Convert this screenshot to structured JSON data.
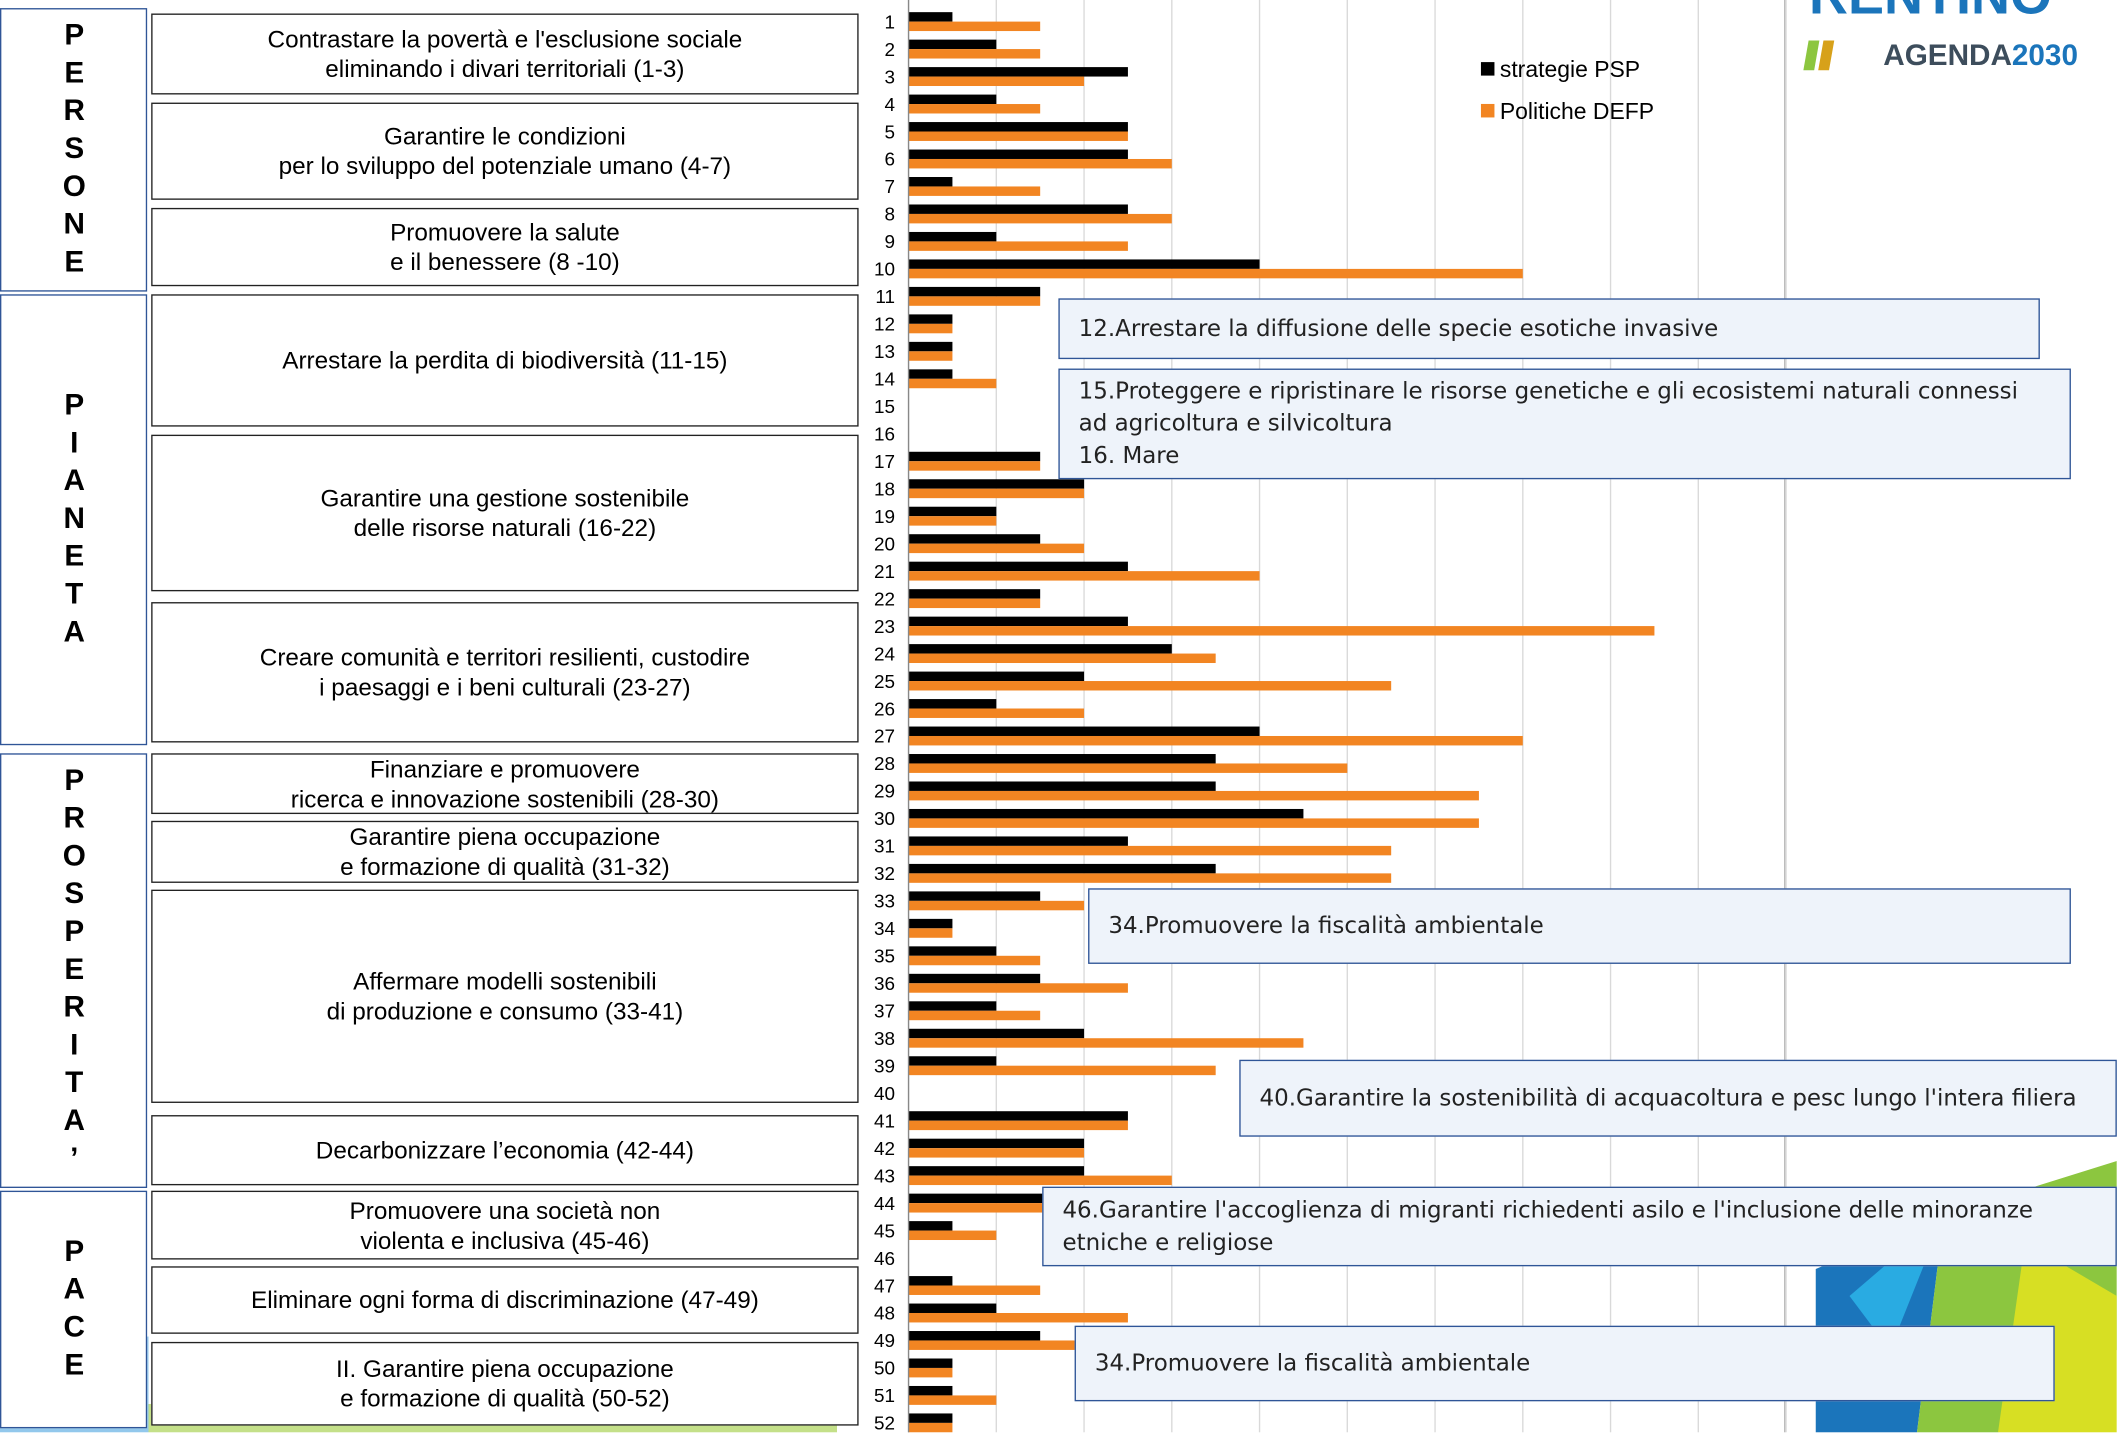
{
  "chart_data": {
    "type": "hbar",
    "categories": [
      "1",
      "2",
      "3",
      "4",
      "5",
      "6",
      "7",
      "8",
      "9",
      "10",
      "11",
      "12",
      "13",
      "14",
      "15",
      "16",
      "17",
      "18",
      "19",
      "20",
      "21",
      "22",
      "23",
      "24",
      "25",
      "26",
      "27",
      "28",
      "29",
      "30",
      "31",
      "32",
      "33",
      "34",
      "35",
      "36",
      "37",
      "38",
      "39",
      "40",
      "41",
      "42",
      "43",
      "44",
      "45",
      "46",
      "47",
      "48",
      "49",
      "50",
      "51",
      "52"
    ],
    "series": [
      {
        "name": "strategie PSP",
        "color": "#000000",
        "values": [
          1,
          2,
          5,
          2,
          5,
          5,
          1,
          5,
          2,
          8,
          3,
          1,
          1,
          1,
          0,
          0,
          3,
          4,
          2,
          3,
          5,
          3,
          5,
          6,
          4,
          2,
          8,
          7,
          7,
          9,
          5,
          7,
          3,
          1,
          2,
          3,
          2,
          4,
          2,
          0,
          5,
          4,
          4,
          4,
          1,
          0,
          1,
          2,
          3,
          1,
          1,
          1
        ]
      },
      {
        "name": "Politiche DEFP",
        "color": "#f28522",
        "values": [
          3,
          3,
          4,
          3,
          5,
          6,
          3,
          6,
          5,
          14,
          3,
          1,
          1,
          2,
          0,
          0,
          3,
          4,
          2,
          4,
          8,
          3,
          17,
          7,
          11,
          4,
          14,
          10,
          13,
          13,
          11,
          11,
          4,
          1,
          3,
          5,
          3,
          9,
          7,
          0,
          5,
          4,
          6,
          4,
          2,
          0,
          3,
          5,
          4,
          1,
          2,
          1
        ]
      }
    ],
    "xlim": [
      0,
      20
    ],
    "xticks": [
      0,
      2,
      4,
      6,
      8,
      10,
      12,
      14,
      16,
      18,
      20
    ],
    "grid": true,
    "legend": "upper right"
  },
  "groups": [
    "PERSONE",
    "PIANETA",
    "PROSPERITA’",
    "PACE"
  ],
  "themes": [
    "Contrastare la povertà e l'esclusione sociale\neliminando i divari territoriali (1-3)",
    "Garantire le condizioni\nper lo sviluppo del potenziale umano (4-7)",
    "Promuovere la salute\ne il benessere (8 -10)",
    "Arrestare la perdita di biodiversità (11-15)",
    "Garantire una gestione sostenibile\ndelle risorse naturali (16-22)",
    "Creare comunità e territori resilienti, custodire\ni paesaggi e i beni culturali (23-27)",
    "Finanziare e promuovere\nricerca e innovazione sostenibili (28-30)",
    "Garantire piena occupazione\ne formazione di qualità (31-32)",
    "Affermare modelli sostenibili\ndi produzione e consumo (33-41)",
    "Decarbonizzare l’economia (42-44)",
    "Promuovere una società non\nviolenta e inclusiva (45-46)",
    "Eliminare ogni forma di discriminazione (47-49)",
    "II. Garantire piena occupazione\ne formazione di qualità (50-52)"
  ],
  "callouts": [
    "12.Arrestare la diffusione delle specie esotiche invasive",
    "15.Proteggere e ripristinare le risorse genetiche e gli ecosistemi naturali connessi\nad agricoltura e silvicoltura\n16. Mare",
    "34.Promuovere la fiscalità ambientale",
    "40.Garantire la sostenibilità di acquacoltura e pesc lungo l'intera filiera",
    "46.Garantire l'accoglienza di migranti richiedenti asilo e l'inclusione delle minoranze\netniche e religiose",
    "34.Promuovere la fiscalità ambientale"
  ],
  "logo": {
    "name": "RENTINO",
    "agenda": "AGENDA",
    "year": "2030"
  }
}
